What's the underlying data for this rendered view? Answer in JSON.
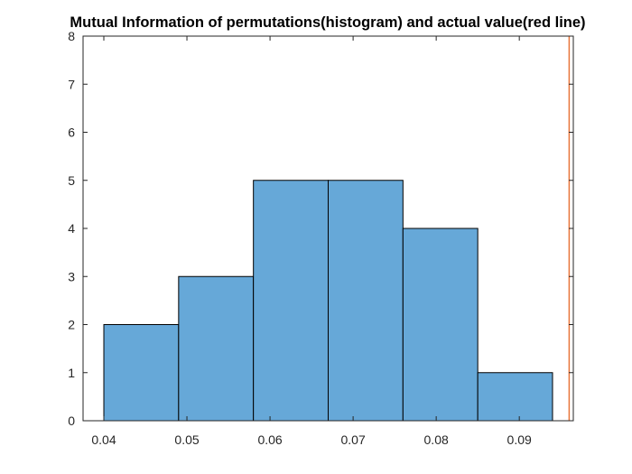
{
  "chart_data": {
    "type": "bar",
    "title": "Mutual Information of permutations(histogram) and actual value(red line)",
    "xlabel": "",
    "ylabel": "",
    "xlim": [
      0.0375,
      0.0965
    ],
    "ylim": [
      0,
      8
    ],
    "x_ticks": [
      0.04,
      0.05,
      0.06,
      0.07,
      0.08,
      0.09
    ],
    "x_tick_labels": [
      "0.04",
      "0.05",
      "0.06",
      "0.07",
      "0.08",
      "0.09"
    ],
    "y_ticks": [
      0,
      1,
      2,
      3,
      4,
      5,
      6,
      7,
      8
    ],
    "y_tick_labels": [
      "0",
      "1",
      "2",
      "3",
      "4",
      "5",
      "6",
      "7",
      "8"
    ],
    "bins": [
      {
        "x_start": 0.04,
        "x_end": 0.049,
        "count": 2
      },
      {
        "x_start": 0.049,
        "x_end": 0.058,
        "count": 3
      },
      {
        "x_start": 0.058,
        "x_end": 0.067,
        "count": 5
      },
      {
        "x_start": 0.067,
        "x_end": 0.076,
        "count": 5
      },
      {
        "x_start": 0.076,
        "x_end": 0.085,
        "count": 4
      },
      {
        "x_start": 0.085,
        "x_end": 0.094,
        "count": 1
      }
    ],
    "reference_line": {
      "x": 0.096
    },
    "grid": false,
    "legend": "none",
    "colors": {
      "bar_fill": "#66a8d8",
      "bar_edge": "#000000",
      "reference_line": "#e8763b",
      "axis": "#262626",
      "title": "#000000"
    }
  }
}
